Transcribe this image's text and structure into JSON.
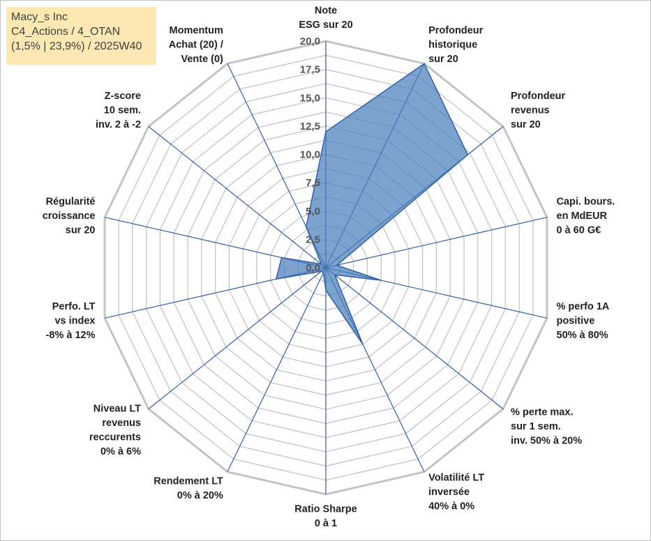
{
  "info_box": {
    "line1": "Macy_s Inc",
    "line2": "C4_Actions / 4_OTAN",
    "line3": "(1,5% | 23,9%) / 2025W40"
  },
  "colors": {
    "fill": "#4a7ebb",
    "line": "#2e5fa8",
    "axis": "#2e5fa8",
    "grid": "#c3c3c3"
  },
  "chart_data": {
    "type": "radar",
    "rmin": 0,
    "rmax": 20,
    "tick_step": 2.5,
    "tick_labels": [
      "0,0",
      "2,5",
      "5,0",
      "7,5",
      "10,0",
      "12,5",
      "15,0",
      "17,5",
      "20,0"
    ],
    "axes": [
      {
        "label": [
          "Note",
          "ESG sur 20"
        ],
        "value": 12.0
      },
      {
        "label": [
          "Profondeur",
          "historique",
          "sur 20"
        ],
        "value": 20.0
      },
      {
        "label": [
          "Profondeur",
          "revenus",
          "sur 20"
        ],
        "value": 16.0
      },
      {
        "label": [
          "Capi. bours.",
          "en MdEUR",
          "0 à 60 G€"
        ],
        "value": 1.0
      },
      {
        "label": [
          "% perfo 1A",
          "positive",
          "50% à 80%"
        ],
        "value": 5.0
      },
      {
        "label": [
          "% perte max.",
          "sur 1 sem.",
          "inv. 50% à 20%"
        ],
        "value": 1.0
      },
      {
        "label": [
          "Volatilité LT",
          "inversée",
          "40% à 0%"
        ],
        "value": 7.5
      },
      {
        "label": [
          "Ratio Sharpe",
          "0 à 1"
        ],
        "value": 2.0
      },
      {
        "label": [
          "Rendement LT",
          "0% à 20%"
        ],
        "value": 0.5
      },
      {
        "label": [
          "Niveau LT",
          "revenus",
          "reccurents",
          "0% à 6%"
        ],
        "value": 0.5
      },
      {
        "label": [
          "Perfo. LT",
          "vs index",
          "-8% à 12%"
        ],
        "value": 4.5
      },
      {
        "label": [
          "Régularité",
          "croissance",
          "sur 20"
        ],
        "value": 4.0
      },
      {
        "label": [
          "Z-score",
          "10 sem.",
          "inv. 2 à -2"
        ],
        "value": 0.5
      },
      {
        "label": [
          "Momentum",
          "Achat (20) /",
          "Vente (0)"
        ],
        "value": 4.0
      }
    ]
  }
}
